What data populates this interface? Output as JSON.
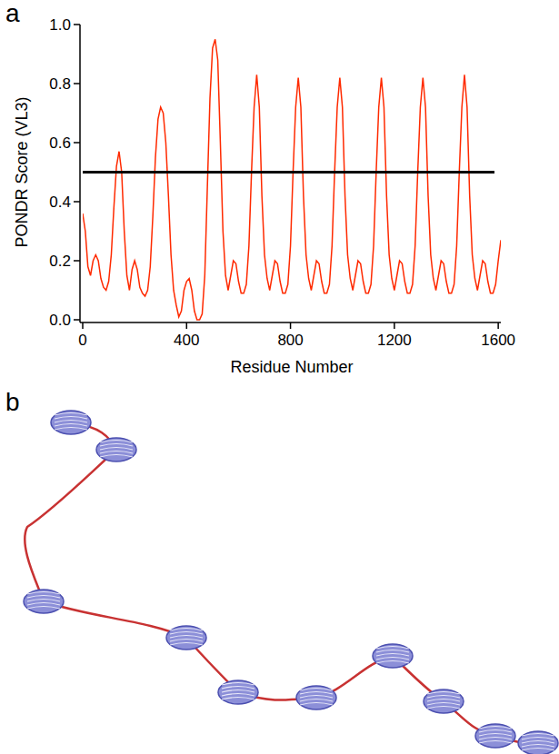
{
  "chart_data": {
    "type": "line",
    "panel_label": "a",
    "xlabel": "Residue Number",
    "ylabel": "PONDR Score (VL3)",
    "color": "#ff2a00",
    "x": [
      0,
      10,
      20,
      30,
      40,
      50,
      60,
      70,
      80,
      90,
      100,
      110,
      120,
      130,
      140,
      150,
      160,
      170,
      180,
      190,
      200,
      210,
      220,
      230,
      240,
      250,
      260,
      270,
      280,
      290,
      300,
      310,
      320,
      330,
      340,
      350,
      360,
      370,
      380,
      390,
      400,
      410,
      420,
      430,
      440,
      450,
      460,
      470,
      480,
      490,
      500,
      510,
      520,
      530,
      540,
      550,
      560,
      570,
      580,
      590,
      600,
      610,
      620,
      630,
      640,
      650,
      660,
      670,
      680,
      690,
      700,
      710,
      720,
      730,
      740,
      750,
      760,
      770,
      780,
      790,
      800,
      810,
      820,
      830,
      840,
      850,
      860,
      870,
      880,
      890,
      900,
      910,
      920,
      930,
      940,
      950,
      960,
      970,
      980,
      990,
      1000,
      1010,
      1020,
      1030,
      1040,
      1050,
      1060,
      1070,
      1080,
      1090,
      1100,
      1110,
      1120,
      1130,
      1140,
      1150,
      1160,
      1170,
      1180,
      1190,
      1200,
      1210,
      1220,
      1230,
      1240,
      1250,
      1260,
      1270,
      1280,
      1290,
      1300,
      1310,
      1320,
      1330,
      1340,
      1350,
      1360,
      1370,
      1380,
      1390,
      1400,
      1410,
      1420,
      1430,
      1440,
      1450,
      1460,
      1470,
      1480,
      1490,
      1500,
      1510,
      1520,
      1530,
      1540,
      1550,
      1560,
      1570,
      1580,
      1590,
      1600,
      1610
    ],
    "values": [
      0.36,
      0.3,
      0.18,
      0.15,
      0.2,
      0.22,
      0.2,
      0.14,
      0.11,
      0.1,
      0.13,
      0.22,
      0.38,
      0.52,
      0.57,
      0.5,
      0.3,
      0.15,
      0.1,
      0.17,
      0.2,
      0.17,
      0.11,
      0.09,
      0.08,
      0.1,
      0.18,
      0.35,
      0.55,
      0.68,
      0.72,
      0.7,
      0.6,
      0.42,
      0.22,
      0.1,
      0.05,
      0.01,
      0.03,
      0.1,
      0.13,
      0.14,
      0.1,
      0.03,
      0.0,
      0.0,
      0.02,
      0.15,
      0.45,
      0.75,
      0.92,
      0.95,
      0.88,
      0.6,
      0.3,
      0.15,
      0.1,
      0.15,
      0.2,
      0.19,
      0.13,
      0.09,
      0.09,
      0.12,
      0.25,
      0.5,
      0.72,
      0.83,
      0.72,
      0.42,
      0.22,
      0.14,
      0.1,
      0.15,
      0.2,
      0.19,
      0.13,
      0.09,
      0.09,
      0.12,
      0.25,
      0.5,
      0.72,
      0.82,
      0.72,
      0.42,
      0.22,
      0.14,
      0.1,
      0.15,
      0.2,
      0.19,
      0.13,
      0.09,
      0.09,
      0.12,
      0.25,
      0.5,
      0.72,
      0.82,
      0.72,
      0.42,
      0.22,
      0.14,
      0.1,
      0.15,
      0.2,
      0.19,
      0.13,
      0.09,
      0.09,
      0.12,
      0.25,
      0.5,
      0.72,
      0.82,
      0.72,
      0.42,
      0.22,
      0.14,
      0.1,
      0.15,
      0.2,
      0.19,
      0.13,
      0.09,
      0.09,
      0.12,
      0.25,
      0.5,
      0.72,
      0.82,
      0.72,
      0.42,
      0.22,
      0.14,
      0.1,
      0.15,
      0.2,
      0.19,
      0.13,
      0.09,
      0.09,
      0.12,
      0.25,
      0.5,
      0.72,
      0.83,
      0.72,
      0.42,
      0.22,
      0.14,
      0.1,
      0.15,
      0.2,
      0.19,
      0.13,
      0.09,
      0.09,
      0.12,
      0.2,
      0.27
    ],
    "threshold": 0.5,
    "xlim": [
      0,
      1610
    ],
    "ylim": [
      0,
      1.0
    ],
    "xticks": [
      0,
      400,
      800,
      1200,
      1600
    ],
    "yticks": [
      {
        "value": 0,
        "label": "0.0"
      },
      0.2,
      0.4,
      0.6,
      0.8,
      {
        "value": 1.0,
        "label": "1.0"
      }
    ],
    "grid": false
  },
  "structure": {
    "panel_label": "b"
  }
}
